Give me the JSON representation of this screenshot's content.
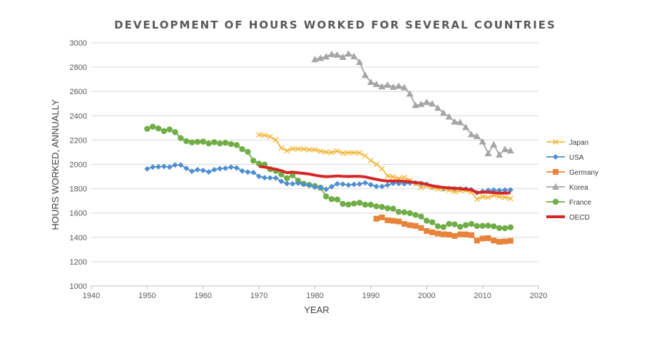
{
  "chart_data": {
    "type": "line",
    "title": "DEVELOPMENT OF HOURS WORKED FOR SEVERAL COUNTRIES",
    "xlabel": "YEAR",
    "ylabel": "HOURS WORKED, ANNUALLY",
    "xlim": [
      1940,
      2020
    ],
    "ylim": [
      1000,
      3000
    ],
    "xticks": [
      1940,
      1950,
      1960,
      1970,
      1980,
      1990,
      2000,
      2010,
      2020
    ],
    "yticks": [
      1000,
      1200,
      1400,
      1600,
      1800,
      2000,
      2200,
      2400,
      2600,
      2800,
      3000
    ],
    "grid": "horizontal",
    "legend_position": "right",
    "series": [
      {
        "name": "Japan",
        "color": "#F2B73A",
        "marker": "x",
        "x": [
          1970,
          1971,
          1972,
          1973,
          1974,
          1975,
          1976,
          1977,
          1978,
          1979,
          1980,
          1981,
          1982,
          1983,
          1984,
          1985,
          1986,
          1987,
          1988,
          1989,
          1990,
          1991,
          1992,
          1993,
          1994,
          1995,
          1996,
          1997,
          1998,
          1999,
          2000,
          2001,
          2002,
          2003,
          2004,
          2005,
          2006,
          2007,
          2008,
          2009,
          2010,
          2011,
          2012,
          2013,
          2014,
          2015
        ],
        "y": [
          2243,
          2240,
          2228,
          2201,
          2135,
          2112,
          2128,
          2126,
          2126,
          2120,
          2121,
          2108,
          2101,
          2098,
          2109,
          2093,
          2096,
          2097,
          2094,
          2070,
          2031,
          2000,
          1965,
          1905,
          1898,
          1884,
          1892,
          1870,
          1842,
          1810,
          1821,
          1809,
          1798,
          1799,
          1787,
          1775,
          1784,
          1785,
          1771,
          1714,
          1733,
          1728,
          1745,
          1734,
          1729,
          1719
        ]
      },
      {
        "name": "USA",
        "color": "#4F8ED1",
        "marker": "diamond",
        "x": [
          1950,
          1951,
          1952,
          1953,
          1954,
          1955,
          1956,
          1957,
          1958,
          1959,
          1960,
          1961,
          1962,
          1963,
          1964,
          1965,
          1966,
          1967,
          1968,
          1969,
          1970,
          1971,
          1972,
          1973,
          1974,
          1975,
          1976,
          1977,
          1978,
          1979,
          1980,
          1981,
          1982,
          1983,
          1984,
          1985,
          1986,
          1987,
          1988,
          1989,
          1990,
          1991,
          1992,
          1993,
          1994,
          1995,
          1996,
          1997,
          1998,
          1999,
          2000,
          2001,
          2002,
          2003,
          2004,
          2005,
          2006,
          2007,
          2008,
          2009,
          2010,
          2011,
          2012,
          2013,
          2014,
          2015
        ],
        "y": [
          1963,
          1978,
          1980,
          1983,
          1977,
          1995,
          1995,
          1968,
          1943,
          1956,
          1950,
          1938,
          1956,
          1965,
          1968,
          1977,
          1971,
          1946,
          1937,
          1933,
          1901,
          1890,
          1889,
          1888,
          1860,
          1842,
          1840,
          1845,
          1836,
          1829,
          1813,
          1810,
          1795,
          1817,
          1840,
          1837,
          1830,
          1835,
          1838,
          1848,
          1833,
          1819,
          1818,
          1830,
          1844,
          1842,
          1840,
          1847,
          1848,
          1843,
          1836,
          1814,
          1810,
          1800,
          1802,
          1800,
          1800,
          1798,
          1792,
          1767,
          1778,
          1786,
          1789,
          1786,
          1789,
          1790
        ]
      },
      {
        "name": "Germany",
        "color": "#E8833A",
        "marker": "square",
        "x": [
          1991,
          1992,
          1993,
          1994,
          1995,
          1996,
          1997,
          1998,
          1999,
          2000,
          2001,
          2002,
          2003,
          2004,
          2005,
          2006,
          2007,
          2008,
          2009,
          2010,
          2011,
          2012,
          2013,
          2014,
          2015
        ],
        "y": [
          1553,
          1564,
          1540,
          1536,
          1530,
          1510,
          1500,
          1494,
          1477,
          1452,
          1441,
          1431,
          1425,
          1422,
          1411,
          1425,
          1424,
          1418,
          1373,
          1390,
          1393,
          1374,
          1363,
          1366,
          1371
        ]
      },
      {
        "name": "Korea",
        "color": "#A5A5A5",
        "marker": "triangle",
        "x": [
          1980,
          1981,
          1982,
          1983,
          1984,
          1985,
          1986,
          1987,
          1988,
          1989,
          1990,
          1991,
          1992,
          1993,
          1994,
          1995,
          1996,
          1997,
          1998,
          1999,
          2000,
          2001,
          2002,
          2003,
          2004,
          2005,
          2006,
          2007,
          2008,
          2009,
          2010,
          2011,
          2012,
          2013,
          2014,
          2015
        ],
        "y": [
          2864,
          2875,
          2887,
          2906,
          2901,
          2883,
          2910,
          2888,
          2841,
          2734,
          2677,
          2660,
          2640,
          2654,
          2636,
          2645,
          2632,
          2581,
          2487,
          2495,
          2512,
          2499,
          2464,
          2424,
          2392,
          2351,
          2346,
          2306,
          2246,
          2232,
          2187,
          2090,
          2163,
          2079,
          2124,
          2113
        ]
      },
      {
        "name": "France",
        "color": "#70AD47",
        "marker": "circle",
        "x": [
          1950,
          1951,
          1952,
          1953,
          1954,
          1955,
          1956,
          1957,
          1958,
          1959,
          1960,
          1961,
          1962,
          1963,
          1964,
          1965,
          1966,
          1967,
          1968,
          1969,
          1970,
          1971,
          1972,
          1973,
          1974,
          1975,
          1976,
          1977,
          1978,
          1979,
          1980,
          1981,
          1982,
          1983,
          1984,
          1985,
          1986,
          1987,
          1988,
          1989,
          1990,
          1991,
          1992,
          1993,
          1994,
          1995,
          1996,
          1997,
          1998,
          1999,
          2000,
          2001,
          2002,
          2003,
          2004,
          2005,
          2006,
          2007,
          2008,
          2009,
          2010,
          2011,
          2012,
          2013,
          2014,
          2015
        ],
        "y": [
          2292,
          2310,
          2295,
          2274,
          2287,
          2265,
          2216,
          2191,
          2181,
          2185,
          2187,
          2172,
          2182,
          2172,
          2177,
          2167,
          2159,
          2125,
          2103,
          2030,
          2006,
          1998,
          1960,
          1946,
          1917,
          1886,
          1911,
          1866,
          1840,
          1831,
          1822,
          1808,
          1736,
          1714,
          1711,
          1675,
          1670,
          1678,
          1684,
          1668,
          1668,
          1655,
          1650,
          1639,
          1635,
          1609,
          1606,
          1598,
          1584,
          1571,
          1536,
          1524,
          1491,
          1484,
          1510,
          1507,
          1486,
          1500,
          1510,
          1493,
          1494,
          1496,
          1490,
          1476,
          1475,
          1482
        ]
      },
      {
        "name": "OECD",
        "color": "#D42727",
        "marker": "none",
        "x": [
          1970,
          1971,
          1972,
          1973,
          1974,
          1975,
          1976,
          1977,
          1978,
          1979,
          1980,
          1981,
          1982,
          1983,
          1984,
          1985,
          1986,
          1987,
          1988,
          1989,
          1990,
          1991,
          1992,
          1993,
          1994,
          1995,
          1996,
          1997,
          1998,
          1999,
          2000,
          2001,
          2002,
          2003,
          2004,
          2005,
          2006,
          2007,
          2008,
          2009,
          2010,
          2011,
          2012,
          2013,
          2014,
          2015
        ],
        "y": [
          1983,
          1978,
          1968,
          1960,
          1948,
          1932,
          1936,
          1930,
          1926,
          1920,
          1911,
          1903,
          1899,
          1901,
          1905,
          1902,
          1900,
          1902,
          1902,
          1897,
          1886,
          1877,
          1868,
          1863,
          1864,
          1863,
          1861,
          1857,
          1850,
          1846,
          1836,
          1824,
          1816,
          1810,
          1806,
          1803,
          1800,
          1796,
          1791,
          1767,
          1772,
          1771,
          1768,
          1763,
          1764,
          1766
        ]
      }
    ]
  }
}
